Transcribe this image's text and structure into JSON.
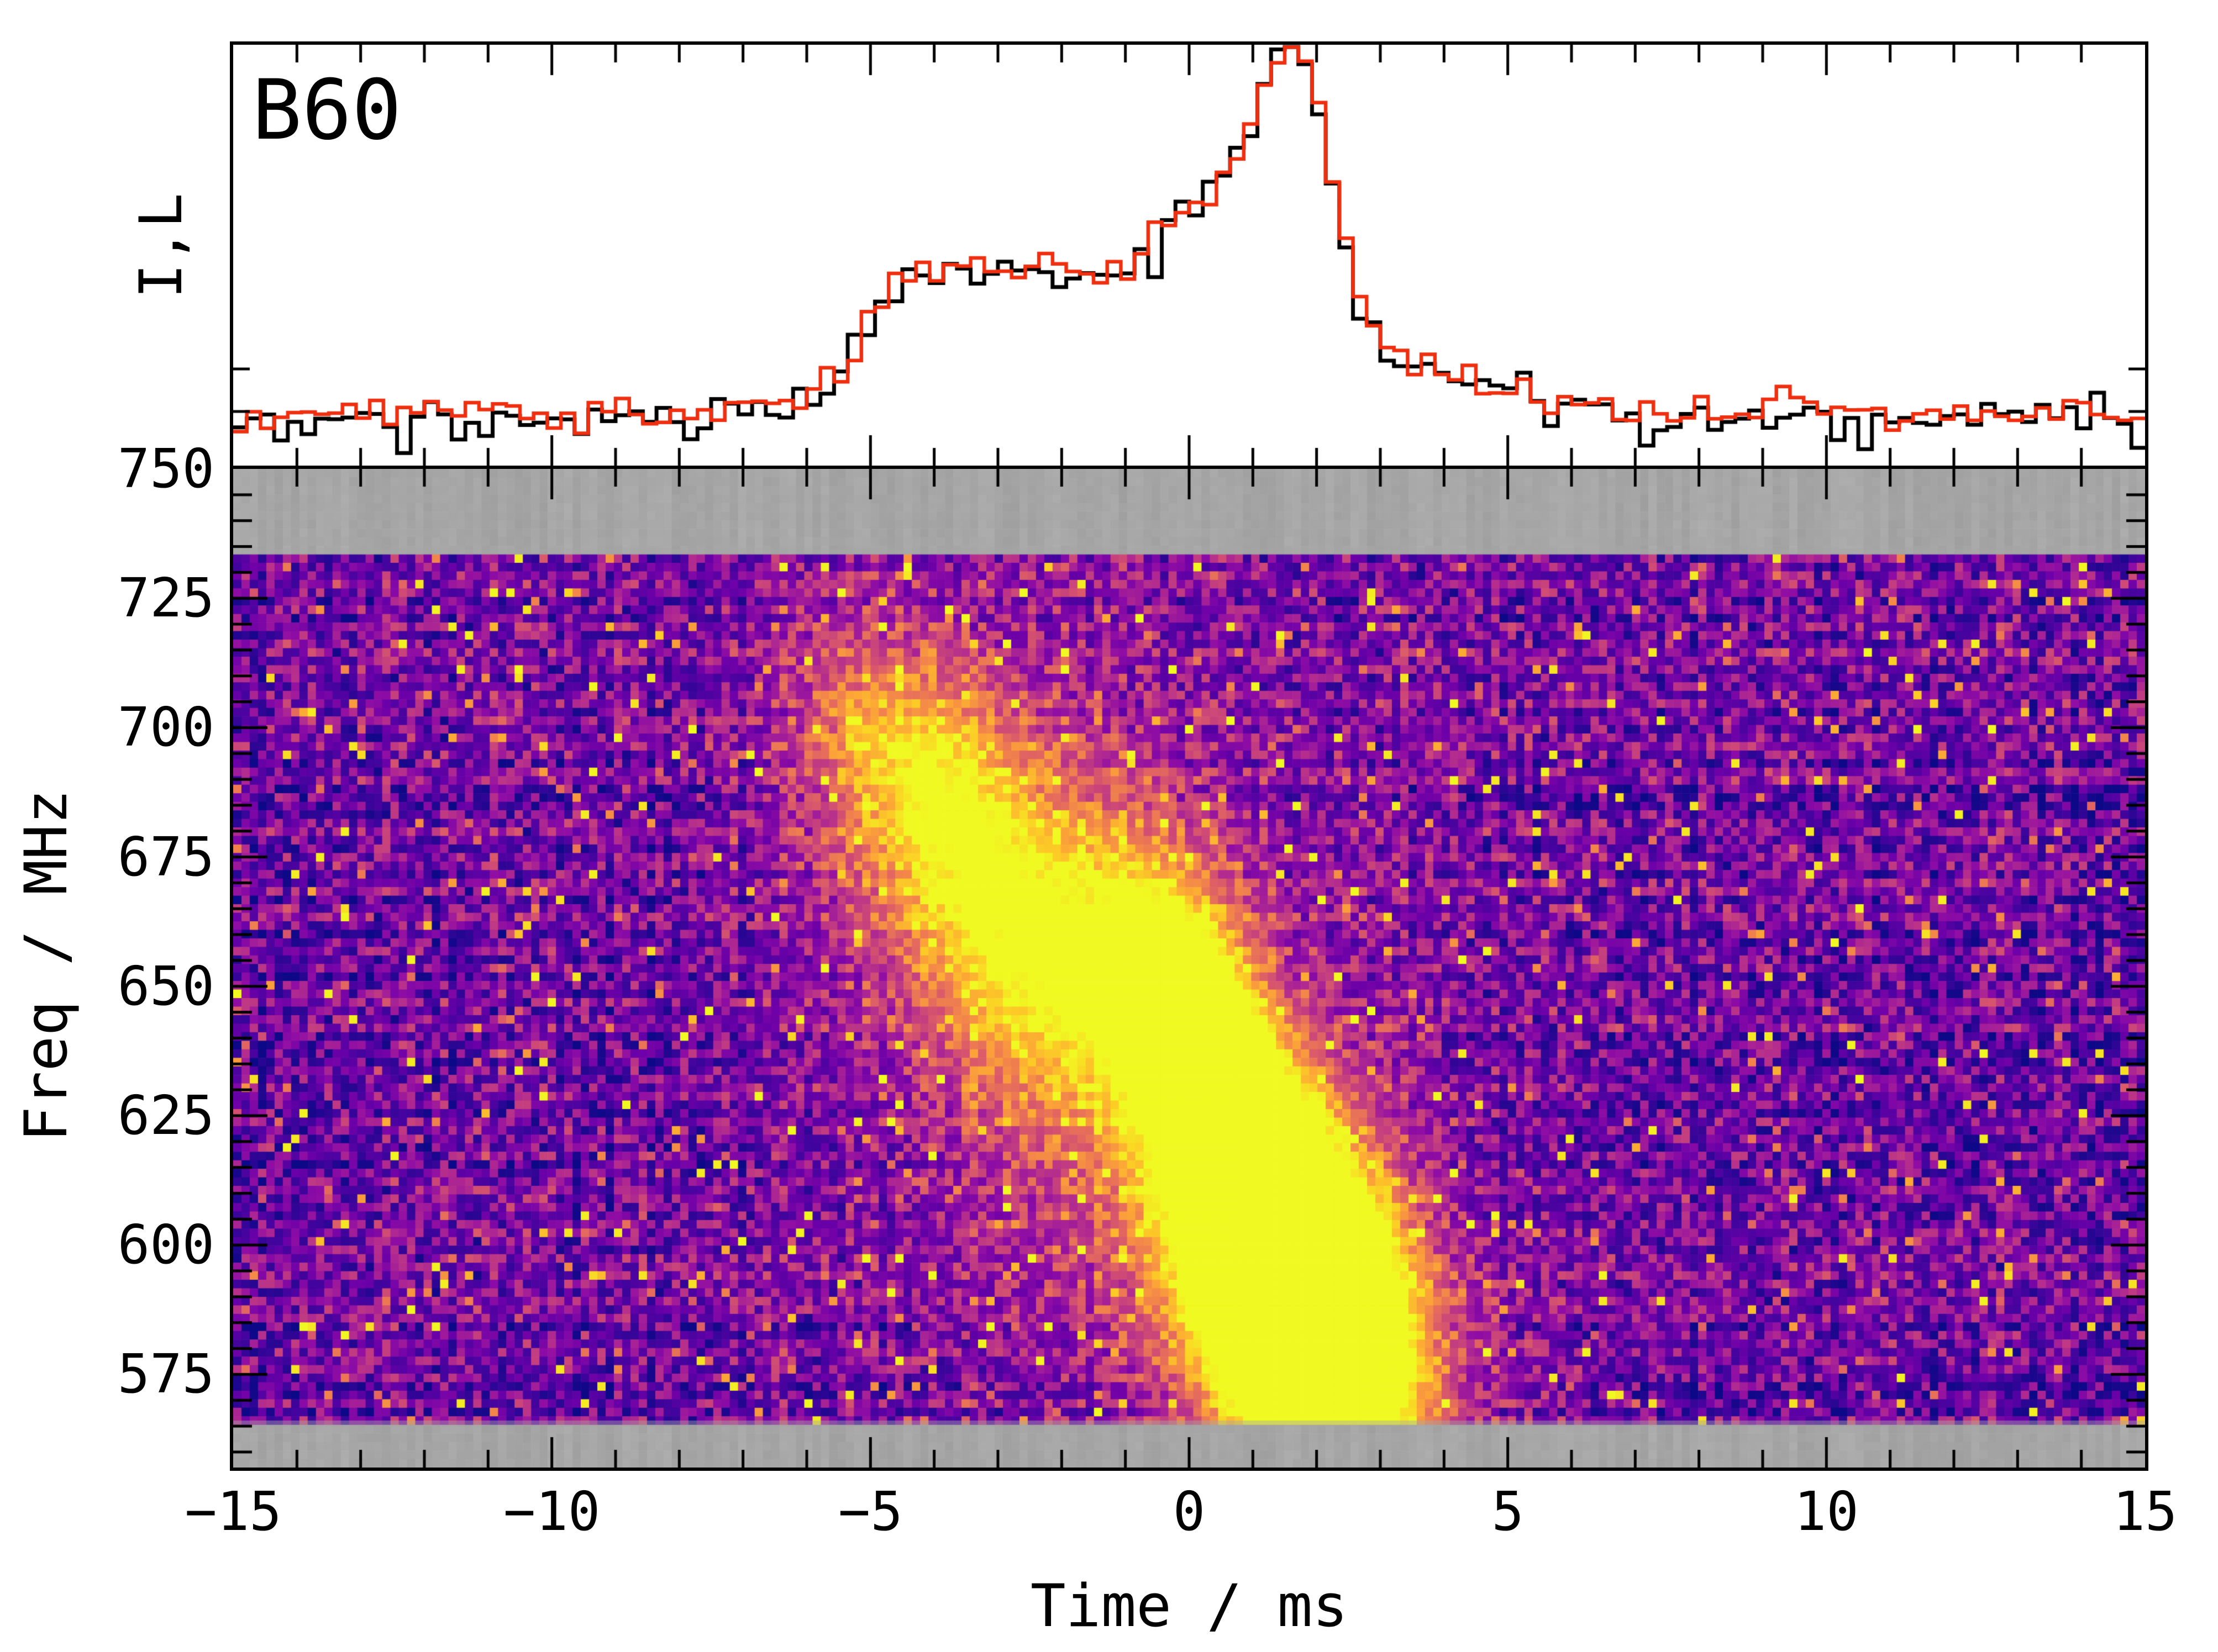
{
  "figure": {
    "background": "#ffffff",
    "frame_color": "#000000",
    "masked_color": "#a6a6a6"
  },
  "chart_data": [
    {
      "id": "pulse-profile",
      "type": "line-step",
      "title": "B60",
      "ylabel": "I,L",
      "x_range_ms": [
        -15,
        15
      ],
      "bins": 140,
      "series": [
        {
          "name": "I",
          "color": "#000000",
          "linewidth": 7
        },
        {
          "name": "L",
          "color": "#ee2f10",
          "linewidth": 6.5
        }
      ],
      "baseline": {
        "I": 0.105,
        "L": 0.125
      },
      "noise_sigma": {
        "I": 0.024,
        "L": 0.021
      },
      "L_scale": 0.95,
      "L_peak_boost": {
        "amp": 0.05,
        "mu": 1.85,
        "sigma": 0.35
      },
      "envelope_components": [
        {
          "amp": 0.11,
          "mu": -4.6,
          "sigma": 0.55
        },
        {
          "amp": 0.37,
          "mu": -2.85,
          "sigma": 1.55
        },
        {
          "amp": 0.46,
          "mu": 0.4,
          "sigma": 1.05
        },
        {
          "amp": 0.62,
          "mu": 1.72,
          "sigma": 0.6
        },
        {
          "amp": 0.11,
          "mu": 3.9,
          "sigma": 1.3
        }
      ]
    },
    {
      "id": "dynamic-spectrum",
      "type": "heatmap",
      "xlabel": "Time / ms",
      "ylabel": "Freq / MHz",
      "x_range_ms": [
        -15,
        15
      ],
      "freq_range_mhz": [
        557,
        750
      ],
      "x_major_ticks": [
        -15,
        -10,
        -5,
        0,
        5,
        10,
        15
      ],
      "x_tick_labels": [
        "−15",
        "−10",
        "−5",
        "0",
        "5",
        "10",
        "15"
      ],
      "x_minor_step_ms": 1,
      "y_major_ticks": [
        750,
        725,
        700,
        675,
        650,
        625,
        600,
        575
      ],
      "y_tick_labels": [
        "750",
        "725",
        "700",
        "675",
        "650",
        "625",
        "600",
        "575"
      ],
      "y_minor_step_mhz": 5,
      "grid": {
        "cols": 231,
        "rows": 117
      },
      "colormap": {
        "name": "plasma",
        "stops": [
          "#0d0887",
          "#41049d",
          "#6a00a8",
          "#8f0da4",
          "#b12a90",
          "#cc4778",
          "#e16462",
          "#f2844b",
          "#fca636",
          "#fcce25",
          "#f0f921"
        ]
      },
      "masked_channels_mhz": [
        [
          734,
          750
        ],
        [
          557,
          565.5
        ]
      ],
      "masked_color": "#a6a6a6",
      "noise": {
        "base": 0.055,
        "spread": 0.42,
        "power": 1.6,
        "row_bias": 0.13,
        "col_bias": 0.1,
        "speckle_yellow_p": 0.012,
        "speckle_orange_p": 0.04,
        "speckle_dark_p": 0.014
      },
      "burst_components": [
        {
          "amp": 2.3,
          "t": 1.7,
          "f": 590,
          "st": 1.25,
          "sf": 25,
          "rho": -0.35
        },
        {
          "amp": 1.15,
          "t": 0.1,
          "f": 641,
          "st": 0.95,
          "sf": 22,
          "rho": -0.5
        },
        {
          "amp": 0.8,
          "t": -2.7,
          "f": 660,
          "st": 1.6,
          "sf": 27,
          "rho": -0.45
        },
        {
          "amp": 0.5,
          "t": -4.4,
          "f": 694,
          "st": 1.1,
          "sf": 16,
          "rho": -0.3
        },
        {
          "amp": 0.22,
          "t": -0.8,
          "f": 634,
          "st": 3.2,
          "sf": 58,
          "rho": -0.3
        }
      ]
    }
  ]
}
